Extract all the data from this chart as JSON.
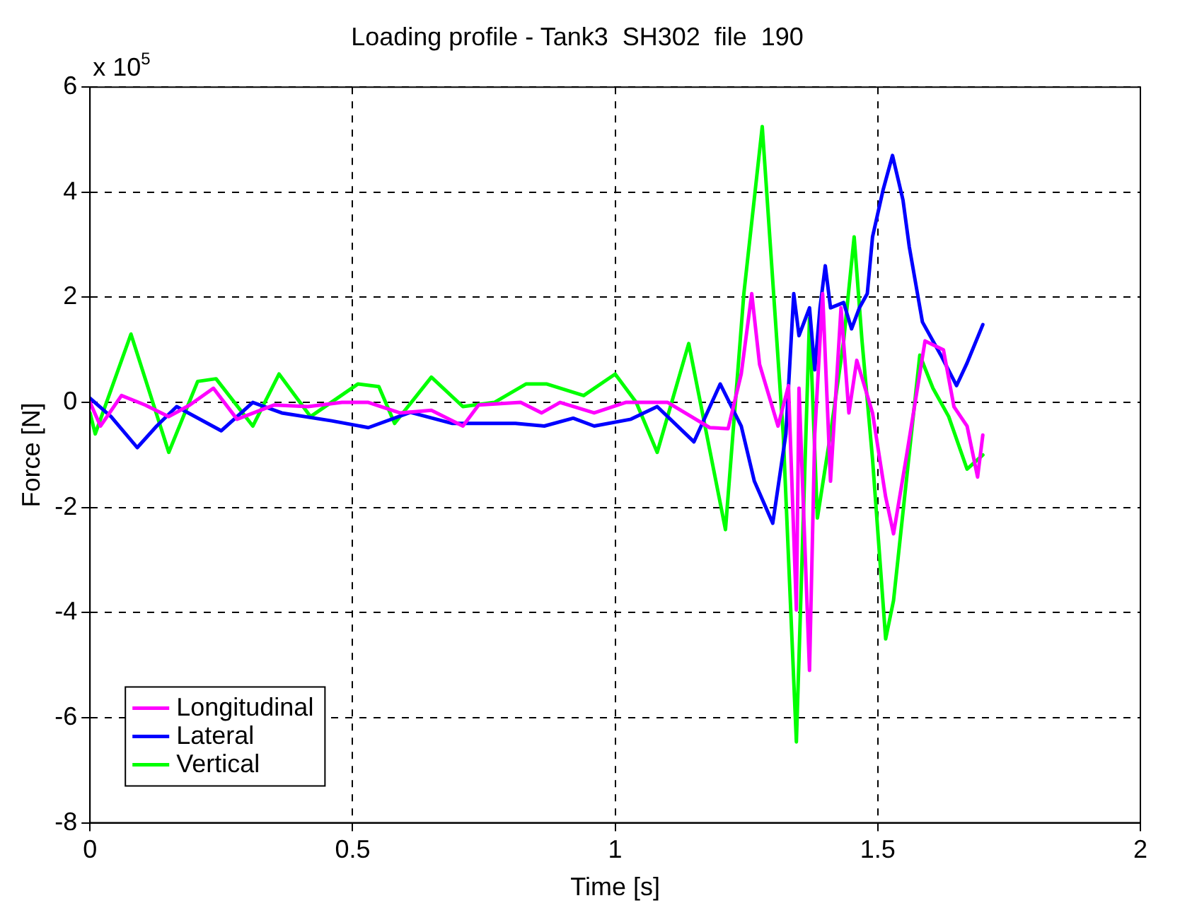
{
  "chart_data": {
    "type": "line",
    "title": "Loading profile - Tank3  SH302  file  190",
    "xlabel": "Time [s]",
    "ylabel": "Force [N]",
    "annotations": [
      "x 10$^{5}$"
    ],
    "xlim": [
      0,
      2
    ],
    "xticks": [
      0,
      0.5,
      1,
      1.5,
      2
    ],
    "ylim": [
      -8,
      6
    ],
    "yticks": [
      -8,
      -6,
      -4,
      -2,
      0,
      2,
      4,
      6
    ],
    "grid": true,
    "legend": "bottom left",
    "line_style": "solid",
    "marker": "none",
    "series": [
      {
        "name": "Longitudinal",
        "color": "#ff00ff",
        "x": [
          0,
          0.02,
          0.06,
          0.105,
          0.15,
          0.19,
          0.235,
          0.28,
          0.35,
          0.415,
          0.48,
          0.53,
          0.59,
          0.65,
          0.71,
          0.74,
          0.82,
          0.86,
          0.895,
          0.96,
          1.02,
          1.1,
          1.18,
          1.215,
          1.24,
          1.26,
          1.275,
          1.31,
          1.33,
          1.345,
          1.35,
          1.37,
          1.38,
          1.395,
          1.41,
          1.43,
          1.445,
          1.46,
          1.49,
          1.515,
          1.53,
          1.555,
          1.59,
          1.625,
          1.645,
          1.67,
          1.69,
          1.7
        ],
        "values": [
          0,
          -0.45,
          0.13,
          -0.05,
          -0.27,
          -0.05,
          0.27,
          -0.32,
          -0.05,
          -0.08,
          0,
          0,
          -0.2,
          -0.15,
          -0.45,
          -0.05,
          0,
          -0.2,
          0,
          -0.2,
          0,
          0,
          -0.48,
          -0.5,
          0.54,
          2.07,
          0.72,
          -0.45,
          0.32,
          -3.95,
          0.27,
          -5.1,
          -0.6,
          2.07,
          -1.5,
          1.8,
          -0.2,
          0.8,
          -0.2,
          -1.8,
          -2.5,
          -1,
          1.17,
          1,
          -0.08,
          -0.45,
          -1.42,
          -0.62
        ]
      },
      {
        "name": "Lateral",
        "color": "#0000ff",
        "x": [
          0,
          0.04,
          0.09,
          0.127,
          0.165,
          0.25,
          0.31,
          0.365,
          0.46,
          0.53,
          0.61,
          0.69,
          0.81,
          0.865,
          0.92,
          0.96,
          1.03,
          1.08,
          1.15,
          1.2,
          1.24,
          1.265,
          1.3,
          1.325,
          1.34,
          1.35,
          1.37,
          1.38,
          1.39,
          1.4,
          1.41,
          1.435,
          1.45,
          1.465,
          1.48,
          1.49,
          1.51,
          1.528,
          1.548,
          1.56,
          1.585,
          1.62,
          1.65,
          1.67,
          1.7
        ],
        "values": [
          0.08,
          -0.27,
          -0.86,
          -0.45,
          -0.08,
          -0.54,
          0,
          -0.2,
          -0.35,
          -0.48,
          -0.19,
          -0.4,
          -0.4,
          -0.45,
          -0.3,
          -0.45,
          -0.32,
          -0.08,
          -0.75,
          0.35,
          -0.45,
          -1.5,
          -2.3,
          -0.6,
          2.07,
          1.27,
          1.8,
          0.62,
          1.8,
          2.6,
          1.8,
          1.9,
          1.4,
          1.8,
          2.07,
          3.15,
          4.04,
          4.7,
          3.85,
          2.96,
          1.53,
          0.9,
          0.32,
          0.75,
          1.48
        ]
      },
      {
        "name": "Vertical",
        "color": "#00ff00",
        "x": [
          0,
          0.01,
          0.078,
          0.15,
          0.205,
          0.24,
          0.31,
          0.36,
          0.42,
          0.51,
          0.55,
          0.58,
          0.65,
          0.71,
          0.77,
          0.83,
          0.87,
          0.94,
          1,
          1.04,
          1.08,
          1.14,
          1.21,
          1.245,
          1.28,
          1.32,
          1.345,
          1.37,
          1.385,
          1.41,
          1.435,
          1.455,
          1.47,
          1.49,
          1.515,
          1.53,
          1.58,
          1.605,
          1.635,
          1.67,
          1.7
        ],
        "values": [
          -0.2,
          -0.6,
          1.3,
          -0.95,
          0.4,
          0.45,
          -0.45,
          0.54,
          -0.27,
          0.35,
          0.3,
          -0.4,
          0.48,
          -0.08,
          0,
          0.35,
          0.35,
          0.13,
          0.54,
          0,
          -0.95,
          1.12,
          -2.42,
          2.07,
          5.25,
          -0.62,
          -6.46,
          1.6,
          -2.2,
          -0.6,
          1.17,
          3.15,
          1.17,
          -1.08,
          -4.5,
          -3.77,
          0.9,
          0.27,
          -0.27,
          -1.27,
          -1
        ]
      }
    ]
  }
}
